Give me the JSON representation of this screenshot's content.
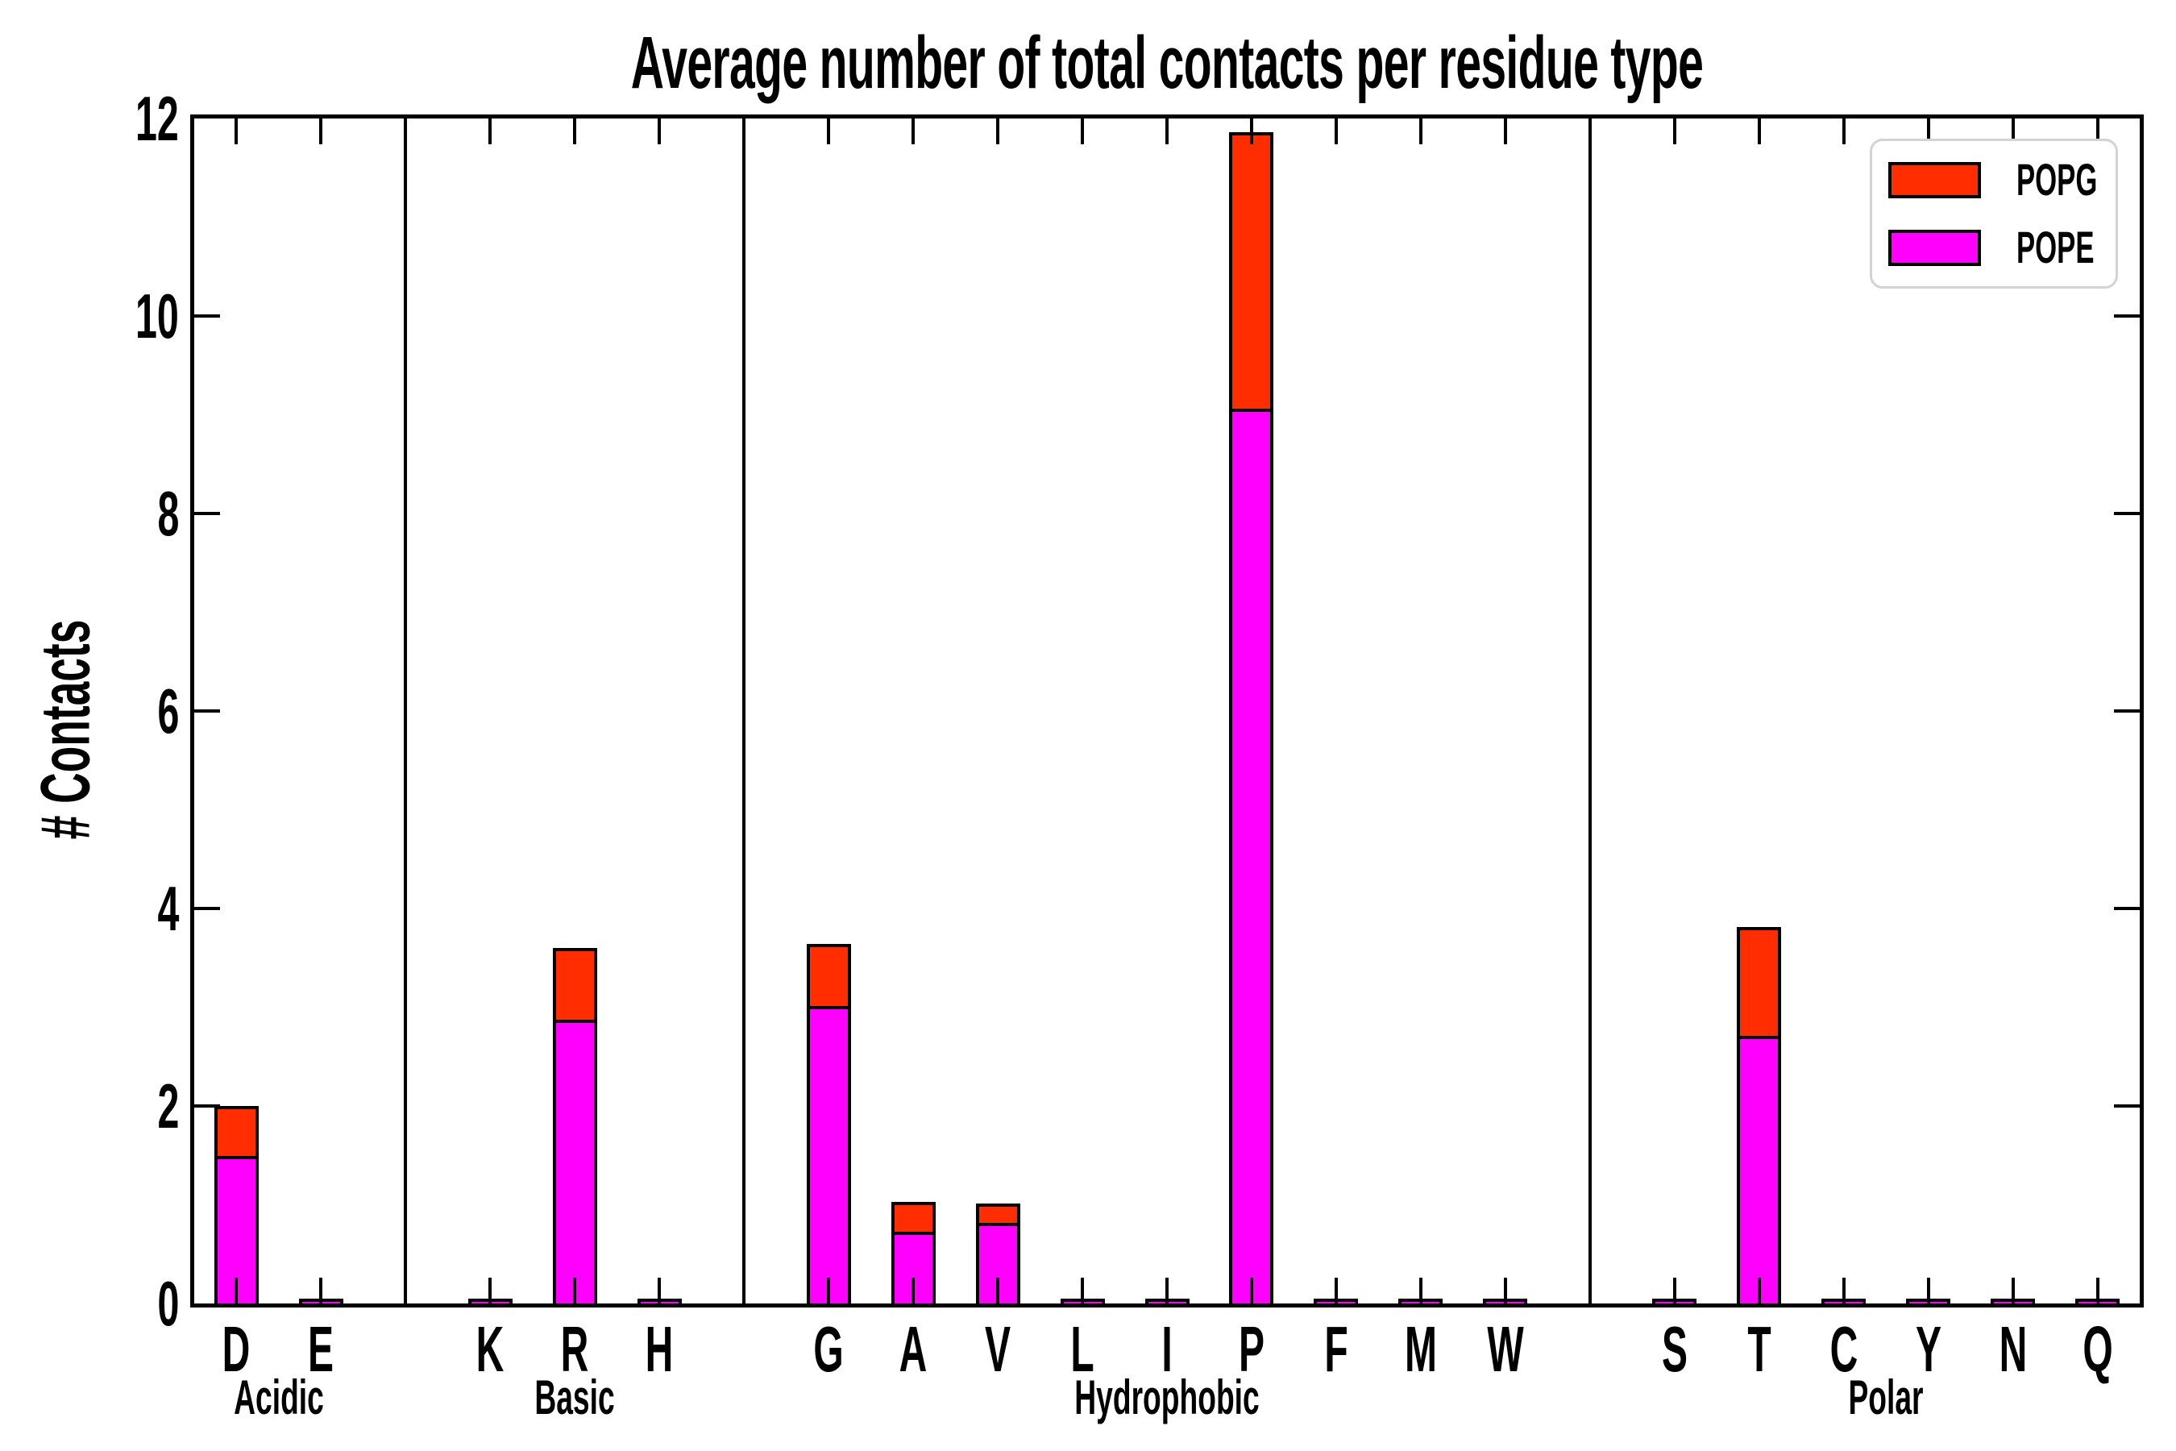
{
  "title": "Average number of total contacts per residue type",
  "ylabel": "# Contacts",
  "legend": {
    "items": [
      {
        "label": "POPG",
        "color": "#ff2d00"
      },
      {
        "label": "POPE",
        "color": "#ff00ff"
      }
    ]
  },
  "colors": {
    "pope": "#ff00ff",
    "popg": "#ff2d00",
    "axis": "#000000",
    "legend_border": "#d3d3d3",
    "background": "#ffffff"
  },
  "chart_data": {
    "type": "bar",
    "stacked": true,
    "title": "Average number of total contacts per residue type",
    "xlabel": "",
    "ylabel": "# Contacts",
    "ylim": [
      0,
      12
    ],
    "yticks": [
      0,
      2,
      4,
      6,
      8,
      10,
      12
    ],
    "ytick_labels": [
      "0",
      "2",
      "4",
      "6",
      "8",
      "10",
      "12"
    ],
    "grid": false,
    "legend_position": "upper right",
    "categories": [
      "D",
      "E",
      "K",
      "R",
      "H",
      "G",
      "A",
      "V",
      "L",
      "I",
      "P",
      "F",
      "M",
      "W",
      "S",
      "T",
      "C",
      "Y",
      "N",
      "Q"
    ],
    "groups": [
      {
        "label": "Acidic",
        "residues": [
          "D",
          "E"
        ]
      },
      {
        "label": "Basic",
        "residues": [
          "K",
          "R",
          "H"
        ]
      },
      {
        "label": "Hydrophobic",
        "residues": [
          "G",
          "A",
          "V",
          "L",
          "I",
          "P",
          "F",
          "M",
          "W"
        ]
      },
      {
        "label": "Polar",
        "residues": [
          "S",
          "T",
          "C",
          "Y",
          "N",
          "Q"
        ]
      }
    ],
    "series": [
      {
        "name": "POPE",
        "color": "#ff00ff",
        "values": [
          1.49,
          0.02,
          0.02,
          2.87,
          0.02,
          3.01,
          0.73,
          0.82,
          0.02,
          0.02,
          9.06,
          0.02,
          0.02,
          0.02,
          0.02,
          2.71,
          0.02,
          0.02,
          0.02,
          0.02
        ]
      },
      {
        "name": "POPG",
        "color": "#ff2d00",
        "values": [
          0.48,
          0.01,
          0.01,
          0.7,
          0.01,
          0.6,
          0.27,
          0.16,
          0.01,
          0.01,
          2.77,
          0.01,
          0.01,
          0.01,
          0.01,
          1.07,
          0.01,
          0.01,
          0.01,
          0.01
        ]
      }
    ]
  }
}
